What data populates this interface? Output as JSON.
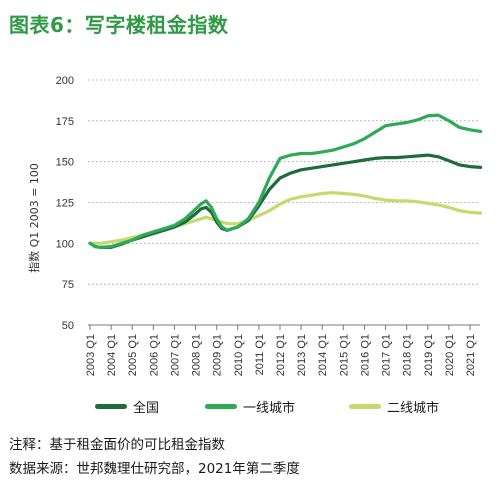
{
  "title": "图表6：写字楼租金指数",
  "chart_data": {
    "type": "line",
    "ylabel": "指数 Q1 2003 = 100",
    "ylim": [
      50,
      200
    ],
    "yticks": [
      50,
      75,
      100,
      125,
      150,
      175,
      200
    ],
    "xlim": [
      2003.0,
      2021.0
    ],
    "x_ticks": [
      {
        "label": "2003 Q1",
        "x": 2003.0
      },
      {
        "label": "2004 Q1",
        "x": 2004.0
      },
      {
        "label": "2005 Q1",
        "x": 2005.0
      },
      {
        "label": "2006 Q1",
        "x": 2006.0
      },
      {
        "label": "2007 Q1",
        "x": 2007.0
      },
      {
        "label": "2008 Q1",
        "x": 2008.0
      },
      {
        "label": "2009 Q1",
        "x": 2009.0
      },
      {
        "label": "2010 Q1",
        "x": 2010.0
      },
      {
        "label": "2011 Q1",
        "x": 2011.0
      },
      {
        "label": "2012 Q1",
        "x": 2012.0
      },
      {
        "label": "2013 Q1",
        "x": 2013.0
      },
      {
        "label": "2014 Q1",
        "x": 2014.0
      },
      {
        "label": "2015 Q1",
        "x": 2015.0
      },
      {
        "label": "2016 Q1",
        "x": 2016.0
      },
      {
        "label": "2017 Q1",
        "x": 2017.0
      },
      {
        "label": "2018 Q1",
        "x": 2018.0
      },
      {
        "label": "2019 Q1",
        "x": 2019.0
      },
      {
        "label": "2020 Q1",
        "x": 2020.0
      },
      {
        "label": "2021 Q1",
        "x": 2021.0
      }
    ],
    "grid": "horizontal-dotted",
    "legend_position": "bottom",
    "series": [
      {
        "name": "全国",
        "color": "#1e6b3c",
        "points": [
          [
            2003.0,
            100
          ],
          [
            2003.25,
            98
          ],
          [
            2003.5,
            97.5
          ],
          [
            2004.0,
            97.5
          ],
          [
            2004.5,
            99.5
          ],
          [
            2005.0,
            102
          ],
          [
            2005.5,
            104
          ],
          [
            2006.0,
            106
          ],
          [
            2006.5,
            108
          ],
          [
            2007.0,
            110
          ],
          [
            2007.5,
            113
          ],
          [
            2008.0,
            118
          ],
          [
            2008.25,
            121
          ],
          [
            2008.5,
            122
          ],
          [
            2008.75,
            119
          ],
          [
            2009.0,
            113
          ],
          [
            2009.25,
            109
          ],
          [
            2009.5,
            108
          ],
          [
            2010.0,
            110
          ],
          [
            2010.5,
            114
          ],
          [
            2011.0,
            123
          ],
          [
            2011.5,
            133
          ],
          [
            2012.0,
            140
          ],
          [
            2012.5,
            143
          ],
          [
            2013.0,
            145
          ],
          [
            2013.5,
            146
          ],
          [
            2014.0,
            147
          ],
          [
            2014.5,
            148
          ],
          [
            2015.0,
            149
          ],
          [
            2015.5,
            150
          ],
          [
            2016.0,
            151
          ],
          [
            2016.5,
            152
          ],
          [
            2017.0,
            152.5
          ],
          [
            2017.5,
            152.5
          ],
          [
            2018.0,
            153
          ],
          [
            2018.5,
            153.5
          ],
          [
            2019.0,
            154
          ],
          [
            2019.5,
            153
          ],
          [
            2020.0,
            150.5
          ],
          [
            2020.5,
            148
          ],
          [
            2021.0,
            147
          ],
          [
            2021.5,
            146.5
          ]
        ]
      },
      {
        "name": "一线城市",
        "color": "#2eaa57",
        "points": [
          [
            2003.0,
            100
          ],
          [
            2003.25,
            98
          ],
          [
            2003.5,
            97.5
          ],
          [
            2004.0,
            98
          ],
          [
            2004.5,
            100
          ],
          [
            2005.0,
            102
          ],
          [
            2005.5,
            105
          ],
          [
            2006.0,
            107
          ],
          [
            2006.5,
            109
          ],
          [
            2007.0,
            111
          ],
          [
            2007.5,
            115
          ],
          [
            2008.0,
            121
          ],
          [
            2008.25,
            124
          ],
          [
            2008.5,
            126
          ],
          [
            2008.75,
            122
          ],
          [
            2009.0,
            115
          ],
          [
            2009.25,
            110
          ],
          [
            2009.5,
            108
          ],
          [
            2010.0,
            110
          ],
          [
            2010.5,
            115
          ],
          [
            2011.0,
            125
          ],
          [
            2011.5,
            140
          ],
          [
            2012.0,
            152
          ],
          [
            2012.5,
            154
          ],
          [
            2013.0,
            155
          ],
          [
            2013.5,
            155
          ],
          [
            2014.0,
            156
          ],
          [
            2014.5,
            157
          ],
          [
            2015.0,
            159
          ],
          [
            2015.5,
            161
          ],
          [
            2016.0,
            164
          ],
          [
            2016.5,
            168
          ],
          [
            2017.0,
            172
          ],
          [
            2017.5,
            173
          ],
          [
            2018.0,
            174
          ],
          [
            2018.5,
            175.5
          ],
          [
            2019.0,
            178
          ],
          [
            2019.5,
            178.5
          ],
          [
            2020.0,
            175
          ],
          [
            2020.5,
            171
          ],
          [
            2021.0,
            169.5
          ],
          [
            2021.5,
            168.5
          ]
        ]
      },
      {
        "name": "二线城市",
        "color": "#c3db6c",
        "points": [
          [
            2003.0,
            100
          ],
          [
            2003.5,
            100
          ],
          [
            2004.0,
            101
          ],
          [
            2004.5,
            102
          ],
          [
            2005.0,
            103.5
          ],
          [
            2005.5,
            105
          ],
          [
            2006.0,
            106
          ],
          [
            2006.5,
            108
          ],
          [
            2007.0,
            110
          ],
          [
            2007.5,
            112
          ],
          [
            2008.0,
            114
          ],
          [
            2008.5,
            116
          ],
          [
            2009.0,
            114
          ],
          [
            2009.5,
            112
          ],
          [
            2010.0,
            112
          ],
          [
            2010.5,
            114
          ],
          [
            2011.0,
            117
          ],
          [
            2011.5,
            120
          ],
          [
            2012.0,
            124
          ],
          [
            2012.5,
            127
          ],
          [
            2013.0,
            128.5
          ],
          [
            2013.5,
            129.5
          ],
          [
            2014.0,
            130.5
          ],
          [
            2014.5,
            131
          ],
          [
            2015.0,
            130.5
          ],
          [
            2015.5,
            130
          ],
          [
            2016.0,
            129
          ],
          [
            2016.5,
            127.5
          ],
          [
            2017.0,
            126.5
          ],
          [
            2017.5,
            126
          ],
          [
            2018.0,
            126
          ],
          [
            2018.5,
            125.5
          ],
          [
            2019.0,
            124.5
          ],
          [
            2019.5,
            123.5
          ],
          [
            2020.0,
            122
          ],
          [
            2020.5,
            120
          ],
          [
            2021.0,
            119
          ],
          [
            2021.5,
            118.5
          ]
        ]
      }
    ]
  },
  "footnotes": {
    "note": "注释：基于租金面价的可比租金指数",
    "source": "数据来源：世邦魏理仕研究部，2021年第二季度"
  }
}
